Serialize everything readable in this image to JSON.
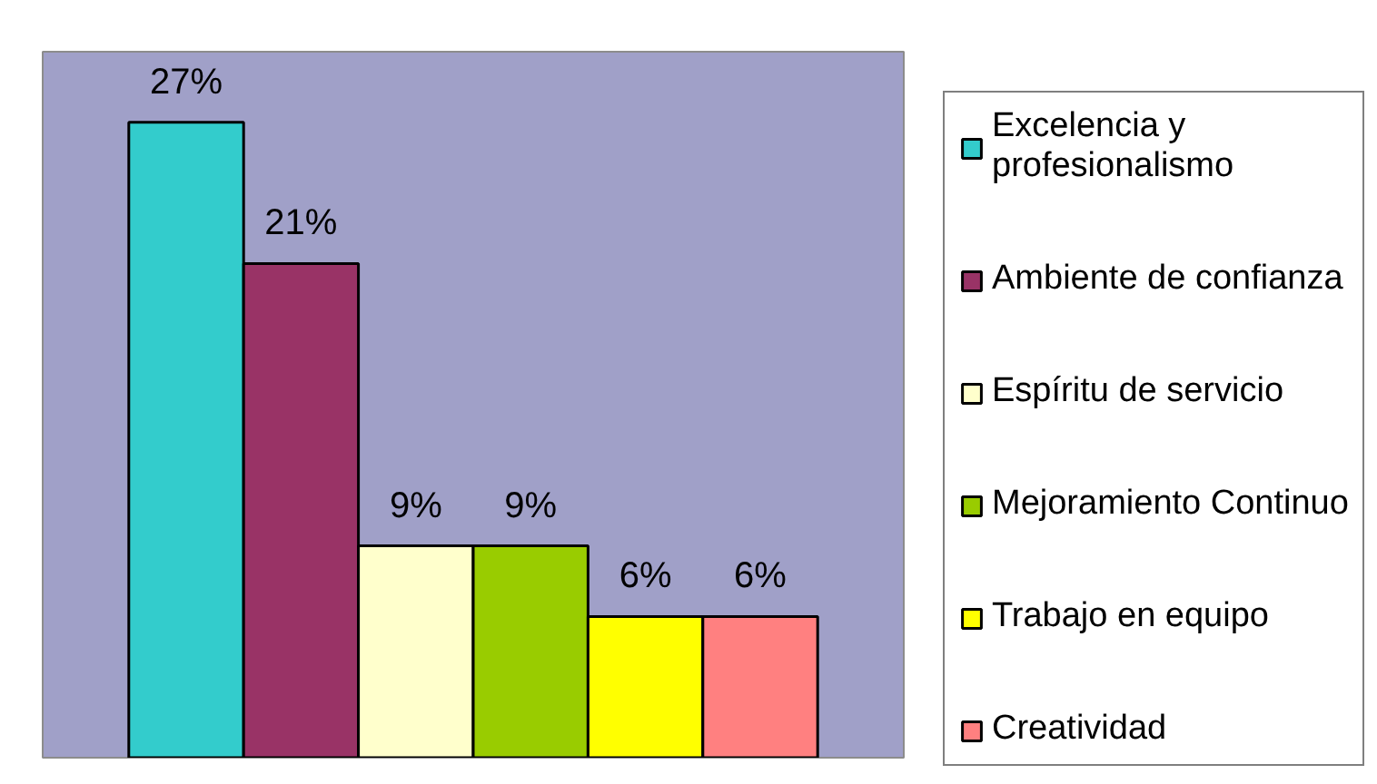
{
  "chart_data": {
    "type": "bar",
    "categories": [
      null
    ],
    "series": [
      {
        "name": "Excelencia y profesionalismo",
        "color": "#33cccc",
        "values": [
          27
        ],
        "value_labels": [
          "27%"
        ]
      },
      {
        "name": "Ambiente de confianza",
        "color": "#993366",
        "values": [
          21
        ],
        "value_labels": [
          "21%"
        ]
      },
      {
        "name": "Espíritu de servicio",
        "color": "#ffffcc",
        "values": [
          9
        ],
        "value_labels": [
          "9%"
        ]
      },
      {
        "name": "Mejoramiento Continuo",
        "color": "#99cc00",
        "values": [
          9
        ],
        "value_labels": [
          "9%"
        ]
      },
      {
        "name": "Trabajo en equipo",
        "color": "#ffff00",
        "values": [
          6
        ],
        "value_labels": [
          "6%"
        ]
      },
      {
        "name": "Creatividad",
        "color": "#ff8080",
        "values": [
          6
        ],
        "value_labels": [
          "6%"
        ]
      }
    ],
    "ylim": [
      0,
      30
    ],
    "tick_labels": false,
    "legend": "right"
  }
}
